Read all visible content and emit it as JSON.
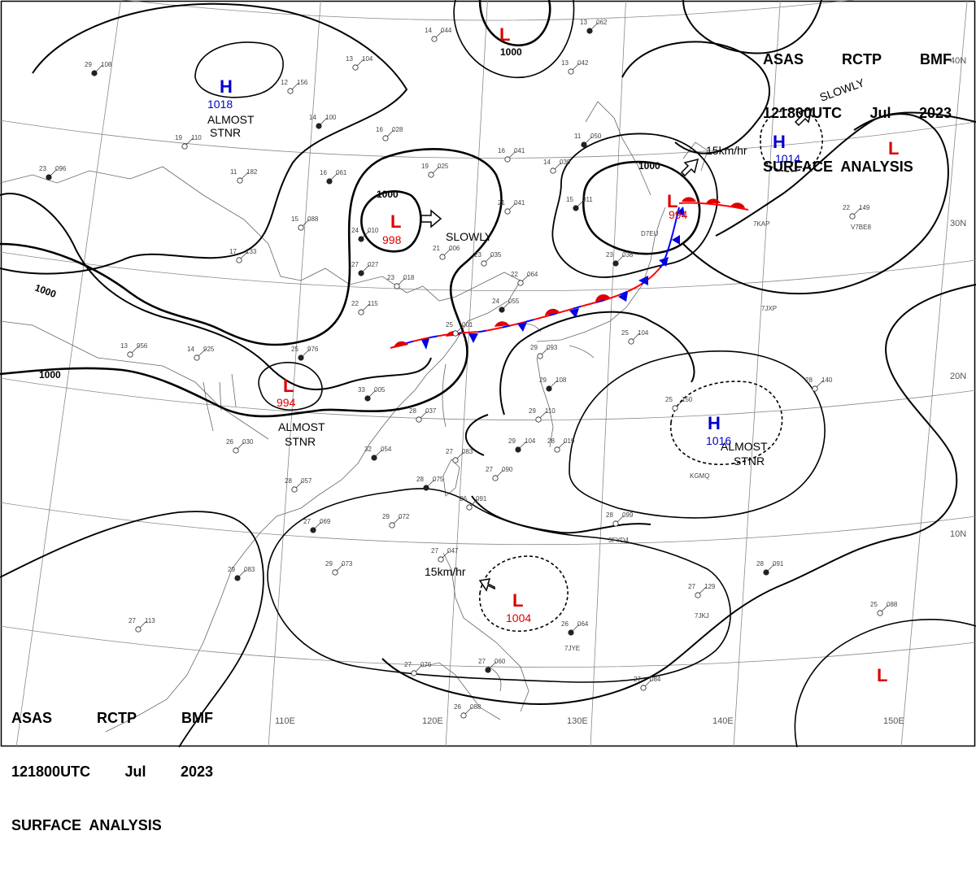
{
  "header": {
    "line1": [
      "ASAS",
      "RCTP",
      "BMF"
    ],
    "line2": [
      "121800UTC",
      "Jul",
      "2023"
    ],
    "line3": "SURFACE  ANALYSIS"
  },
  "grid": {
    "lat_labels": [
      "40N",
      "30N",
      "20N",
      "10N"
    ],
    "lon_labels": [
      "110E",
      "120E",
      "130E",
      "140E",
      "150E"
    ]
  },
  "isobar_labels": [
    "1000",
    "1000",
    "1000",
    "1000",
    "1000"
  ],
  "pressure_systems": [
    {
      "symbol": "H",
      "value": "1018",
      "color": "#0000cc",
      "status": "ALMOST STNR"
    },
    {
      "symbol": "L",
      "value": "998",
      "color": "#dd0000",
      "status": "SLOWLY"
    },
    {
      "symbol": "L",
      "value": "994",
      "color": "#dd0000",
      "status": "ALMOST STNR"
    },
    {
      "symbol": "L",
      "value": "",
      "color": "#dd0000",
      "status": ""
    },
    {
      "symbol": "L",
      "value": "994",
      "color": "#dd0000",
      "status": "15km/hr"
    },
    {
      "symbol": "H",
      "value": "1014",
      "color": "#0000cc",
      "status": "SLOWLY"
    },
    {
      "symbol": "L",
      "value": "",
      "color": "#dd0000",
      "status": ""
    },
    {
      "symbol": "H",
      "value": "1016",
      "color": "#0000cc",
      "status": "ALMOST STNR"
    },
    {
      "symbol": "L",
      "value": "1004",
      "color": "#dd0000",
      "status": "15km/hr"
    },
    {
      "symbol": "L",
      "value": "",
      "color": "#dd0000",
      "status": ""
    }
  ],
  "stations": [
    {
      "t": "29",
      "p": "108"
    },
    {
      "t": "13",
      "p": "104"
    },
    {
      "t": "14",
      "p": "044"
    },
    {
      "t": "13",
      "p": "062"
    },
    {
      "t": "12",
      "p": "156"
    },
    {
      "t": "13",
      "p": "042"
    },
    {
      "t": "14",
      "p": "100"
    },
    {
      "t": "16",
      "p": "028"
    },
    {
      "t": "19",
      "p": "110"
    },
    {
      "t": "11",
      "p": "050"
    },
    {
      "t": "11",
      "p": "182"
    },
    {
      "t": "16",
      "p": "041"
    },
    {
      "t": "16",
      "p": "061"
    },
    {
      "t": "14",
      "p": "039"
    },
    {
      "t": "19",
      "p": "025"
    },
    {
      "t": "23",
      "p": "096"
    },
    {
      "t": "15",
      "p": "088"
    },
    {
      "t": "21",
      "p": "041"
    },
    {
      "t": "15",
      "p": "011"
    },
    {
      "t": "22",
      "p": "149"
    },
    {
      "t": "17",
      "p": "133"
    },
    {
      "t": "24",
      "p": "010"
    },
    {
      "t": "21",
      "p": "006"
    },
    {
      "t": "23",
      "p": "035"
    },
    {
      "t": "27",
      "p": "027"
    },
    {
      "t": "22",
      "p": "064"
    },
    {
      "t": "23",
      "p": "018"
    },
    {
      "t": "24",
      "p": "055"
    },
    {
      "t": "22",
      "p": "115"
    },
    {
      "t": "25",
      "p": "001"
    },
    {
      "t": "23",
      "p": "038"
    },
    {
      "t": "14",
      "p": "925"
    },
    {
      "t": "13",
      "p": "956"
    },
    {
      "t": "25",
      "p": "976"
    },
    {
      "t": "29",
      "p": "093"
    },
    {
      "t": "25",
      "p": "104"
    },
    {
      "t": "29",
      "p": "108"
    },
    {
      "t": "25",
      "p": "150"
    },
    {
      "t": "28",
      "p": "140"
    },
    {
      "t": "33",
      "p": "005"
    },
    {
      "t": "28",
      "p": "037"
    },
    {
      "t": "29",
      "p": "110"
    },
    {
      "t": "29",
      "p": "104"
    },
    {
      "t": "28",
      "p": "019"
    },
    {
      "t": "26",
      "p": "030"
    },
    {
      "t": "32",
      "p": "054"
    },
    {
      "t": "27",
      "p": "083"
    },
    {
      "t": "27",
      "p": "090"
    },
    {
      "t": "28",
      "p": "075"
    },
    {
      "t": "26",
      "p": "091"
    },
    {
      "t": "28",
      "p": "057"
    },
    {
      "t": "27",
      "p": "069"
    },
    {
      "t": "29",
      "p": "072"
    },
    {
      "t": "28",
      "p": "099"
    },
    {
      "t": "29",
      "p": "083"
    },
    {
      "t": "29",
      "p": "073"
    },
    {
      "t": "27",
      "p": "047"
    },
    {
      "t": "28",
      "p": "091"
    },
    {
      "t": "27",
      "p": "129"
    },
    {
      "t": "27",
      "p": "113"
    },
    {
      "t": "26",
      "p": "064"
    },
    {
      "t": "25",
      "p": "088"
    },
    {
      "t": "27",
      "p": "076"
    },
    {
      "t": "27",
      "p": "060"
    },
    {
      "t": "27",
      "p": "084"
    },
    {
      "t": "26",
      "p": "088"
    }
  ],
  "ship_ids": [
    "7KAP",
    "V7BE8",
    "7JXP",
    "D7EU",
    "KGMQ",
    "3FYD4",
    "7JKJ",
    "7JYE"
  ]
}
